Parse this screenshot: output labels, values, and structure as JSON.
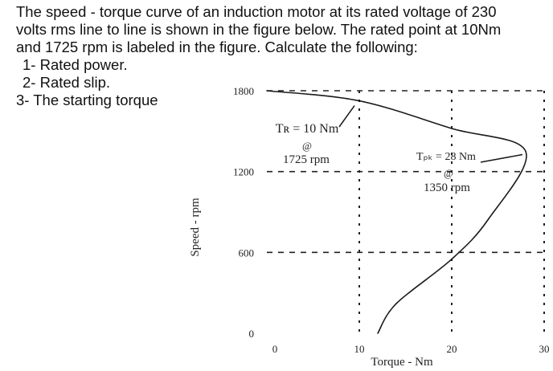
{
  "problem": {
    "lines": [
      "The speed - torque curve of an induction motor at its rated voltage of 230",
      "volts rms line to line is shown in the figure below. The rated point at 10Nm",
      "and 1725 rpm is labeled in the figure. Calculate the following:"
    ],
    "items": [
      "1- Rated power.",
      "2- Rated slip.",
      "3- The starting torque"
    ]
  },
  "chart_data": {
    "type": "line",
    "xlabel": "Torque - Nm",
    "ylabel": "Speed - rpm",
    "xlim": [
      0,
      30
    ],
    "ylim": [
      0,
      1800
    ],
    "xticks": [
      "0",
      "10",
      "20",
      "30"
    ],
    "yticks": [
      "0",
      "600",
      "1200",
      "1800"
    ],
    "grid": "dashed",
    "series": [
      {
        "points": [
          [
            0,
            1800
          ],
          [
            10,
            1725
          ],
          [
            20,
            1520
          ],
          [
            28,
            1350
          ],
          [
            24,
            850
          ],
          [
            20,
            550
          ],
          [
            14,
            220
          ],
          [
            12,
            0
          ]
        ]
      }
    ],
    "annotations": [
      {
        "lines": [
          "Tʀ = 10 Nm",
          "@",
          "1725 rpm"
        ]
      },
      {
        "lines": [
          "Tₚₖ = 28 Nm",
          "@",
          "1350 rpm"
        ]
      }
    ]
  }
}
